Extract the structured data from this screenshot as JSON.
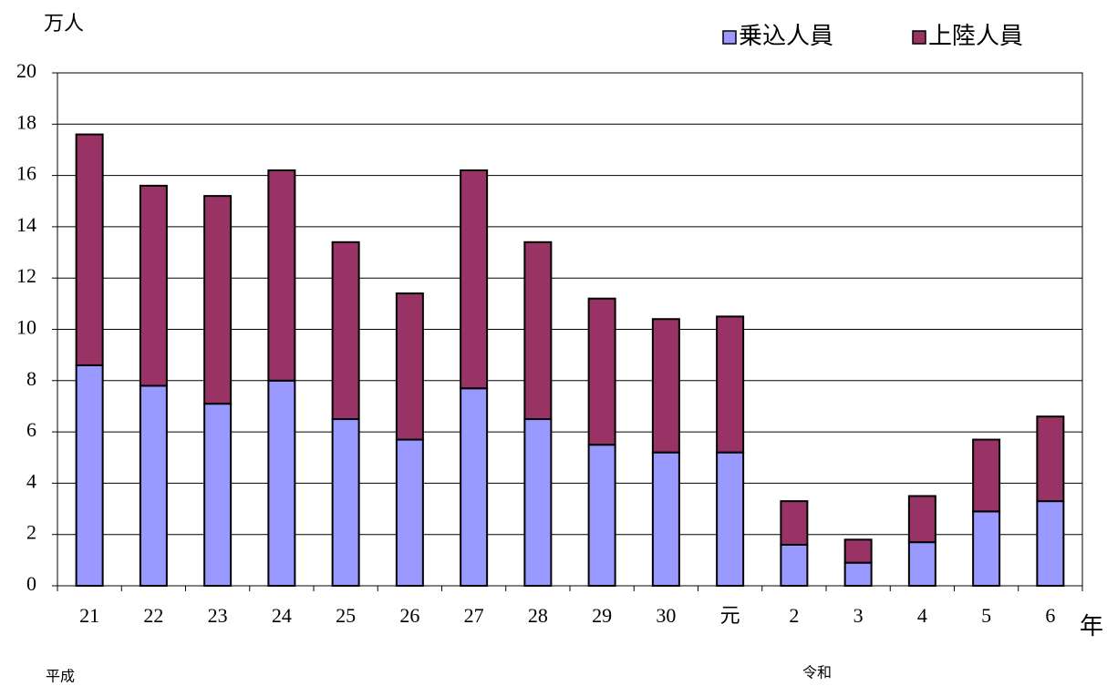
{
  "chart_data": {
    "type": "stacked_bar",
    "y_label": "万人",
    "x_label": "年",
    "annotations": [
      "平成",
      "令和"
    ],
    "categories": [
      "21",
      "22",
      "23",
      "24",
      "25",
      "26",
      "27",
      "28",
      "29",
      "30",
      "元",
      "2",
      "3",
      "4",
      "5",
      "6"
    ],
    "series": [
      {
        "name": "乗込人員",
        "color": "#9999ff",
        "values": [
          8.6,
          7.8,
          7.1,
          8.0,
          6.5,
          5.7,
          7.7,
          6.5,
          5.5,
          5.2,
          5.2,
          1.6,
          0.9,
          1.7,
          2.9,
          3.3
        ]
      },
      {
        "name": "上陸人員",
        "color": "#993366",
        "values": [
          9.0,
          7.8,
          8.1,
          8.2,
          6.9,
          5.7,
          8.5,
          6.9,
          5.7,
          5.2,
          5.3,
          1.7,
          0.9,
          1.8,
          2.8,
          3.3
        ]
      }
    ],
    "ylim": [
      0,
      20
    ],
    "yticks": [
      0,
      2,
      4,
      6,
      8,
      10,
      12,
      14,
      16,
      18,
      20
    ],
    "grid": true,
    "legend": "top-right"
  }
}
